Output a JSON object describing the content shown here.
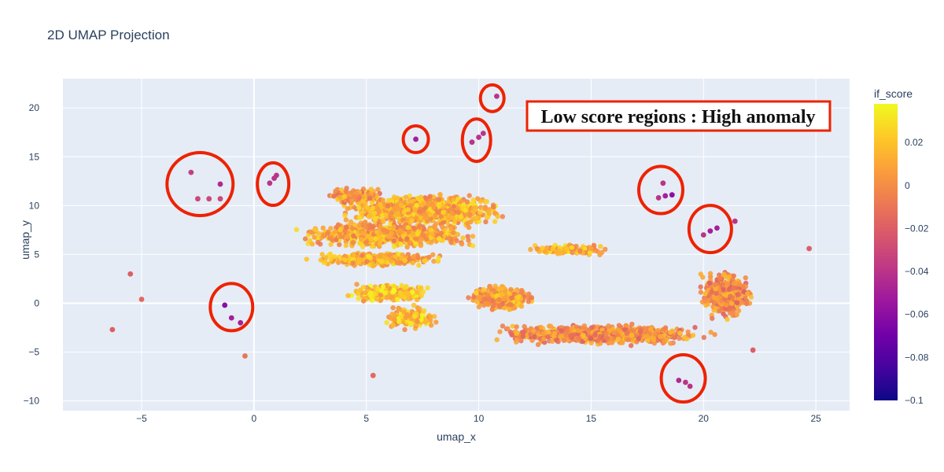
{
  "chart_data": {
    "type": "scatter",
    "title": "2D UMAP Projection",
    "xlabel": "umap_x",
    "ylabel": "umap_y",
    "xlim": [
      -8.5,
      26.5
    ],
    "ylim": [
      -11,
      23
    ],
    "x_ticks": [
      -5,
      0,
      5,
      10,
      15,
      20,
      25
    ],
    "y_ticks": [
      -10,
      -5,
      0,
      5,
      10,
      15,
      20
    ],
    "grid": true,
    "colorbar": {
      "title": "if_score",
      "range": [
        -0.1,
        0.038
      ],
      "ticks": [
        0.02,
        0,
        -0.02,
        -0.04,
        -0.06,
        -0.08,
        -0.1
      ],
      "tick_labels": [
        "0.02",
        "0",
        "−0.02",
        "−0.04",
        "−0.06",
        "−0.08",
        "−0.1"
      ],
      "colorscale": [
        "#0d0887",
        "#46039f",
        "#7201a8",
        "#9c179e",
        "#bd3786",
        "#d8576b",
        "#ed7953",
        "#fb9f3a",
        "#fdca26",
        "#f0f921"
      ]
    },
    "clusters": [
      {
        "cx": 7.5,
        "cy": 9.5,
        "rx": 4.0,
        "ry": 1.8,
        "n": 900,
        "score": 0.012
      },
      {
        "cx": 6.0,
        "cy": 7.0,
        "rx": 4.5,
        "ry": 1.5,
        "n": 700,
        "score": 0.01
      },
      {
        "cx": 4.5,
        "cy": 11.0,
        "rx": 1.5,
        "ry": 1.0,
        "n": 150,
        "score": 0.005
      },
      {
        "cx": 5.5,
        "cy": 4.5,
        "rx": 3.5,
        "ry": 0.8,
        "n": 300,
        "score": 0.012
      },
      {
        "cx": 6.0,
        "cy": 1.0,
        "rx": 2.0,
        "ry": 1.0,
        "n": 250,
        "score": 0.02
      },
      {
        "cx": 7.0,
        "cy": -1.5,
        "rx": 1.5,
        "ry": 1.5,
        "n": 150,
        "score": 0.018
      },
      {
        "cx": 11.0,
        "cy": 0.5,
        "rx": 1.6,
        "ry": 1.4,
        "n": 400,
        "score": 0.008
      },
      {
        "cx": 15.5,
        "cy": -3.2,
        "rx": 5.5,
        "ry": 1.2,
        "n": 700,
        "score": 0.0
      },
      {
        "cx": 21.0,
        "cy": 1.0,
        "rx": 1.4,
        "ry": 2.8,
        "n": 400,
        "score": 0.0
      },
      {
        "cx": 14.0,
        "cy": 5.5,
        "rx": 2.0,
        "ry": 0.6,
        "n": 120,
        "score": 0.012
      }
    ],
    "anomaly_points": [
      {
        "x": -2.5,
        "y": 10.7,
        "score": -0.03
      },
      {
        "x": -2.0,
        "y": 10.7,
        "score": -0.03
      },
      {
        "x": -1.5,
        "y": 10.7,
        "score": -0.03
      },
      {
        "x": -2.8,
        "y": 13.4,
        "score": -0.035
      },
      {
        "x": -1.5,
        "y": 12.2,
        "score": -0.045
      },
      {
        "x": 0.7,
        "y": 12.3,
        "score": -0.04
      },
      {
        "x": 0.9,
        "y": 12.8,
        "score": -0.04
      },
      {
        "x": 1.0,
        "y": 13.1,
        "score": -0.04
      },
      {
        "x": 7.2,
        "y": 16.8,
        "score": -0.05
      },
      {
        "x": 9.7,
        "y": 16.5,
        "score": -0.04
      },
      {
        "x": 10.0,
        "y": 17.0,
        "score": -0.04
      },
      {
        "x": 10.2,
        "y": 17.4,
        "score": -0.04
      },
      {
        "x": 10.8,
        "y": 21.2,
        "score": -0.04
      },
      {
        "x": 18.0,
        "y": 10.8,
        "score": -0.04
      },
      {
        "x": 18.3,
        "y": 11.0,
        "score": -0.05
      },
      {
        "x": 18.6,
        "y": 11.1,
        "score": -0.06
      },
      {
        "x": 18.2,
        "y": 12.3,
        "score": -0.04
      },
      {
        "x": 20.0,
        "y": 7.0,
        "score": -0.04
      },
      {
        "x": 20.3,
        "y": 7.4,
        "score": -0.05
      },
      {
        "x": 20.6,
        "y": 7.7,
        "score": -0.05
      },
      {
        "x": -1.3,
        "y": -0.2,
        "score": -0.06
      },
      {
        "x": -1.0,
        "y": -1.5,
        "score": -0.05
      },
      {
        "x": -0.6,
        "y": -2.0,
        "score": -0.05
      },
      {
        "x": 18.9,
        "y": -7.9,
        "score": -0.045
      },
      {
        "x": 19.2,
        "y": -8.1,
        "score": -0.04
      },
      {
        "x": 19.4,
        "y": -8.5,
        "score": -0.04
      },
      {
        "x": -6.3,
        "y": -2.7,
        "score": -0.02
      },
      {
        "x": -5.5,
        "y": 3.0,
        "score": -0.02
      },
      {
        "x": -5.0,
        "y": 0.4,
        "score": -0.015
      },
      {
        "x": 24.7,
        "y": 5.6,
        "score": -0.02
      },
      {
        "x": 22.2,
        "y": -4.8,
        "score": -0.02
      },
      {
        "x": 5.3,
        "y": -7.4,
        "score": -0.015
      },
      {
        "x": -0.4,
        "y": -5.4,
        "score": -0.01
      },
      {
        "x": 21.4,
        "y": 8.4,
        "score": -0.04
      }
    ],
    "highlight_circles": [
      {
        "x": -2.4,
        "y": 12.2
      },
      {
        "x": 0.85,
        "y": 12.2
      },
      {
        "x": 7.2,
        "y": 16.8
      },
      {
        "x": 9.9,
        "y": 16.7
      },
      {
        "x": 10.6,
        "y": 21.0
      },
      {
        "x": 18.1,
        "y": 11.6
      },
      {
        "x": 20.3,
        "y": 7.6
      },
      {
        "x": -1.0,
        "y": -0.4
      },
      {
        "x": 19.1,
        "y": -7.7
      }
    ],
    "annotation": "Low score regions : High anomaly"
  }
}
